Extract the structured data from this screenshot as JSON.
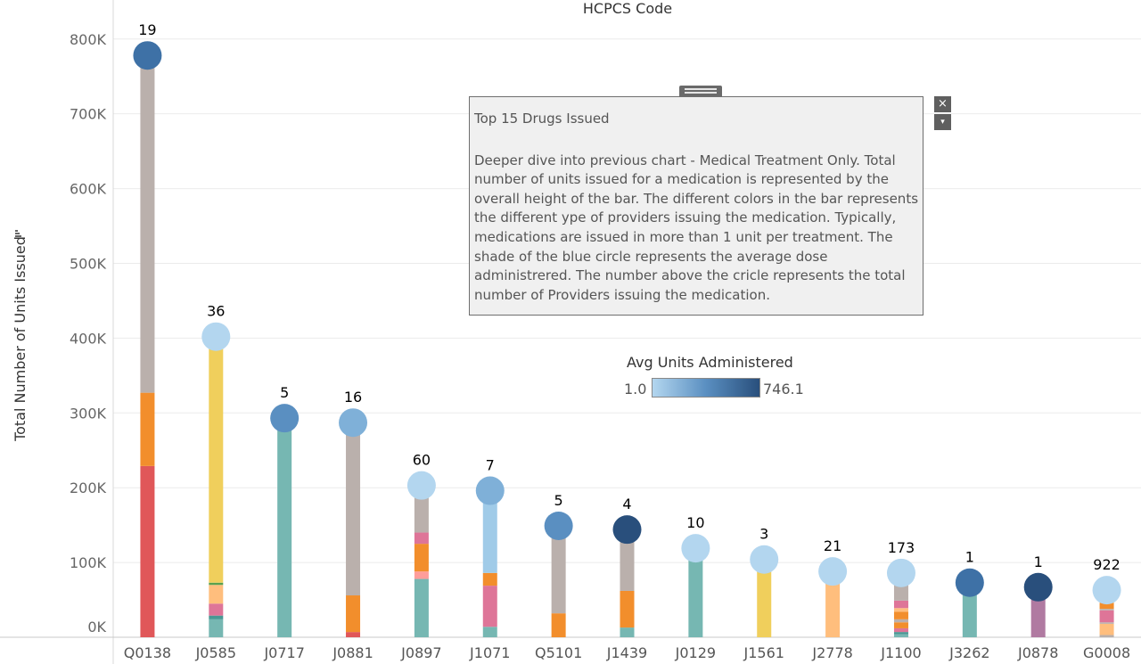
{
  "colors": {
    "circle_scale": [
      "#b3d6ef",
      "#9ecae8",
      "#7fb0d8",
      "#5a8fc1",
      "#3e71a6",
      "#294f7c"
    ],
    "provider_types": {
      "red": "#e05759",
      "orange": "#f28e2c",
      "gray": "#bab0ac",
      "yellow": "#f0cf5c",
      "teal": "#76b7b2",
      "light_orange": "#ffbe7d",
      "pink": "#de7598",
      "light_red": "#ff9d9a",
      "green": "#59a14f",
      "dark_teal": "#499894",
      "light_blue": "#a0cbe8",
      "purple": "#b07aa1",
      "brown": "#9d7660"
    }
  },
  "chart_data": {
    "type": "bar",
    "title": "HCPCS Code",
    "xlabel": "",
    "ylabel": "Total Number of Units Issued",
    "ylim": [
      0,
      845000
    ],
    "yticks": [
      0,
      100000,
      200000,
      300000,
      400000,
      500000,
      600000,
      700000,
      800000
    ],
    "ytick_labels": [
      "0K",
      "100K",
      "200K",
      "300K",
      "400K",
      "500K",
      "600K",
      "700K",
      "800K"
    ],
    "grid": true,
    "categories": [
      "Q0138",
      "J0585",
      "J0717",
      "J0881",
      "J0897",
      "J1071",
      "Q5101",
      "J1439",
      "J0129",
      "J1561",
      "J2778",
      "J1100",
      "J3262",
      "J0878",
      "G0008"
    ],
    "totals": [
      778000,
      402000,
      293000,
      287000,
      203000,
      196000,
      149000,
      144000,
      119000,
      104000,
      88000,
      86000,
      73000,
      67000,
      63000
    ],
    "provider_counts": [
      19,
      36,
      5,
      16,
      60,
      7,
      5,
      4,
      10,
      3,
      21,
      173,
      1,
      1,
      922
    ],
    "avg_units_level": [
      4,
      0,
      3,
      2,
      0,
      2,
      3,
      5,
      0,
      0,
      0,
      0,
      4,
      5,
      0
    ],
    "segments": [
      [
        [
          "red",
          229000
        ],
        [
          "orange",
          98000
        ],
        [
          "gray",
          451000
        ]
      ],
      [
        [
          "teal",
          24000
        ],
        [
          "dark_teal",
          5000
        ],
        [
          "pink",
          16000
        ],
        [
          "light_orange",
          25000
        ],
        [
          "green",
          3000
        ],
        [
          "yellow",
          329000
        ]
      ],
      [
        [
          "teal",
          293000
        ]
      ],
      [
        [
          "red",
          7000
        ],
        [
          "orange",
          49000
        ],
        [
          "gray",
          231000
        ]
      ],
      [
        [
          "teal",
          78000
        ],
        [
          "light_red",
          10000
        ],
        [
          "orange",
          37000
        ],
        [
          "pink",
          15000
        ],
        [
          "gray",
          63000
        ]
      ],
      [
        [
          "teal",
          14000
        ],
        [
          "pink",
          55000
        ],
        [
          "orange",
          17000
        ],
        [
          "light_blue",
          110000
        ]
      ],
      [
        [
          "orange",
          32000
        ],
        [
          "gray",
          117000
        ]
      ],
      [
        [
          "teal",
          13000
        ],
        [
          "orange",
          49000
        ],
        [
          "gray",
          82000
        ]
      ],
      [
        [
          "teal",
          119000
        ]
      ],
      [
        [
          "yellow",
          104000
        ]
      ],
      [
        [
          "light_orange",
          88000
        ]
      ],
      [
        [
          "teal",
          4000
        ],
        [
          "dark_teal",
          3000
        ],
        [
          "pink",
          5000
        ],
        [
          "orange",
          8000
        ],
        [
          "gray",
          4000
        ],
        [
          "orange",
          10000
        ],
        [
          "light_orange",
          5000
        ],
        [
          "pink",
          10000
        ],
        [
          "gray",
          37000
        ]
      ],
      [
        [
          "teal",
          73000
        ]
      ],
      [
        [
          "purple",
          67000
        ]
      ],
      [
        [
          "gray",
          3000
        ],
        [
          "light_orange",
          15000
        ],
        [
          "gray",
          2000
        ],
        [
          "pink",
          16000
        ],
        [
          "gray",
          2000
        ],
        [
          "orange",
          8000
        ],
        [
          "light_orange",
          17000
        ]
      ]
    ]
  },
  "tooltip": {
    "title": "Top 15 Drugs Issued",
    "body": "Deeper dive into previous chart - Medical Treatment Only.  Total number of units issued for a medication is represented by the overall height of the bar.  The different colors in the bar represents the different ype of providers issuing the medication. Typically, medications are issued in more than 1 unit per treatment.  The shade of the blue circle represents the average dose administrered.  The number above the cricle  represents the total number of Providers issuing the medication.",
    "close_icon": "×",
    "menu_icon": "▾"
  },
  "legend": {
    "title": "Avg Units Administered",
    "min": "1.0",
    "max": "746.1"
  }
}
